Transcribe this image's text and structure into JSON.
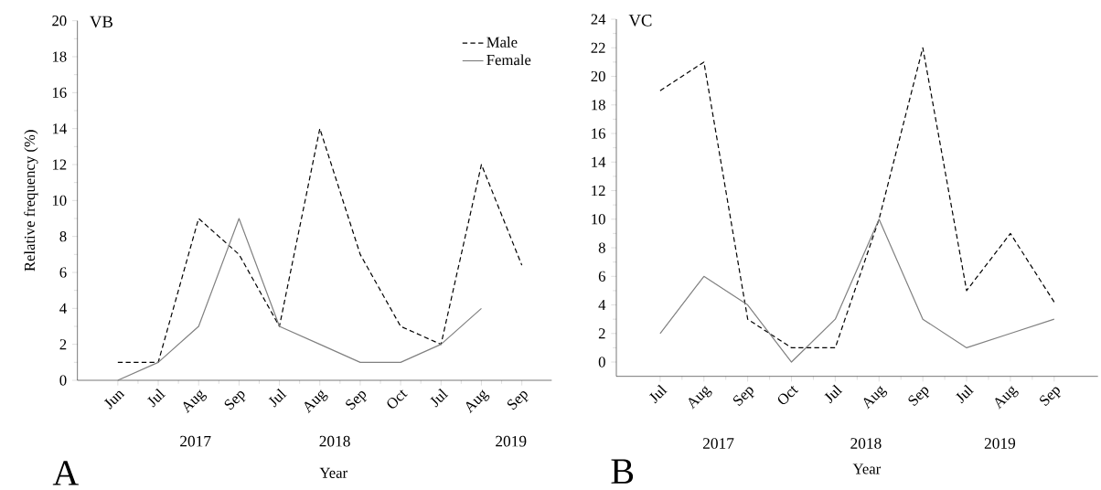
{
  "chart_data": [
    {
      "type": "line",
      "title": "VB",
      "xlabel": "Year",
      "ylabel": "Relative frequency (%)",
      "categories": [
        "Jun",
        "Jul",
        "Aug",
        "Sep",
        "Jul",
        "Aug",
        "Sep",
        "Oct",
        "Jul",
        "Aug",
        "Sep"
      ],
      "series": [
        {
          "name": "Male",
          "color": "#000000",
          "line_style": "dashed",
          "values": [
            1,
            1,
            9,
            7,
            3,
            14,
            7,
            3,
            2,
            12,
            6.4
          ]
        },
        {
          "name": "Female",
          "color": "#808080",
          "line_style": "solid",
          "values": [
            0,
            1,
            3,
            9,
            3,
            2,
            1,
            1,
            2,
            4,
            null
          ]
        }
      ],
      "ylim": [
        0,
        20
      ],
      "yticks": [
        0,
        2,
        4,
        6,
        8,
        10,
        12,
        14,
        16,
        18,
        20
      ],
      "legend": "top right",
      "grid": false,
      "annotations": [
        "2017",
        "2018",
        "2019",
        "A"
      ]
    },
    {
      "type": "line",
      "title": "VC",
      "xlabel": "Year",
      "categories": [
        "Jul",
        "Aug",
        "Sep",
        "Oct",
        "Jul",
        "Aug",
        "Sep",
        "Jul",
        "Aug",
        "Sep"
      ],
      "series": [
        {
          "color": "#000000",
          "line_style": "dashed",
          "values": [
            19,
            21,
            3,
            1,
            1,
            10,
            22,
            5,
            9,
            4.2
          ]
        },
        {
          "color": "#808080",
          "line_style": "solid",
          "values": [
            2,
            6,
            4,
            0,
            3,
            10,
            3,
            1,
            2,
            3
          ]
        }
      ],
      "ylim": [
        -1,
        24
      ],
      "yticks": [
        0,
        2,
        4,
        6,
        8,
        10,
        12,
        14,
        16,
        18,
        20,
        22,
        24
      ],
      "legend": false,
      "grid": false,
      "annotations": [
        "2017",
        "2018",
        "2019",
        "B"
      ]
    }
  ]
}
